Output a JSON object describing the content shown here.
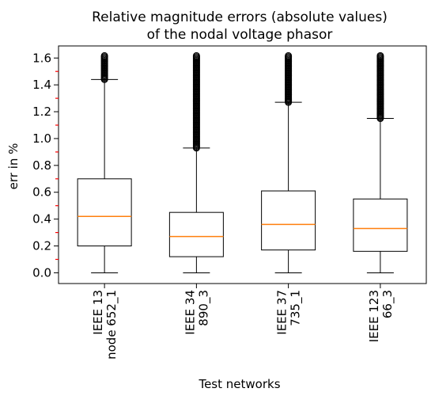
{
  "chart_data": {
    "type": "box",
    "title": "Relative magnitude errors (absolute values)",
    "subtitle": "of the nodal voltage phasor",
    "xlabel": "Test networks",
    "ylabel": "err in %",
    "ylim": [
      -0.08,
      1.69
    ],
    "yticks": [
      0.0,
      0.2,
      0.4,
      0.6,
      0.8,
      1.0,
      1.2,
      1.4,
      1.6
    ],
    "ytick_labels": [
      "0.0",
      "0.2",
      "0.4",
      "0.6",
      "0.8",
      "1.0",
      "1.2",
      "1.4",
      "1.6"
    ],
    "minor_ytick_color": "#ff0000",
    "median_color": "#ff7f0e",
    "grid": false,
    "categories": [
      {
        "line1": "IEEE 13",
        "line2": "node 652_1"
      },
      {
        "line1": "IEEE 34",
        "line2": "890_3"
      },
      {
        "line1": "IEEE 37",
        "line2": "735_1"
      },
      {
        "line1": "IEEE 123",
        "line2": "66_3"
      }
    ],
    "boxes": [
      {
        "whisker_low": 0.0,
        "q1": 0.2,
        "median": 0.42,
        "q3": 0.7,
        "whisker_high": 1.44,
        "outlier_start": 1.44,
        "outlier_max": 1.62
      },
      {
        "whisker_low": 0.0,
        "q1": 0.12,
        "median": 0.27,
        "q3": 0.45,
        "whisker_high": 0.93,
        "outlier_start": 0.93,
        "outlier_max": 1.62
      },
      {
        "whisker_low": 0.0,
        "q1": 0.17,
        "median": 0.36,
        "q3": 0.61,
        "whisker_high": 1.27,
        "outlier_start": 1.27,
        "outlier_max": 1.62
      },
      {
        "whisker_low": 0.0,
        "q1": 0.16,
        "median": 0.33,
        "q3": 0.55,
        "whisker_high": 1.15,
        "outlier_start": 1.15,
        "outlier_max": 1.62
      }
    ]
  }
}
